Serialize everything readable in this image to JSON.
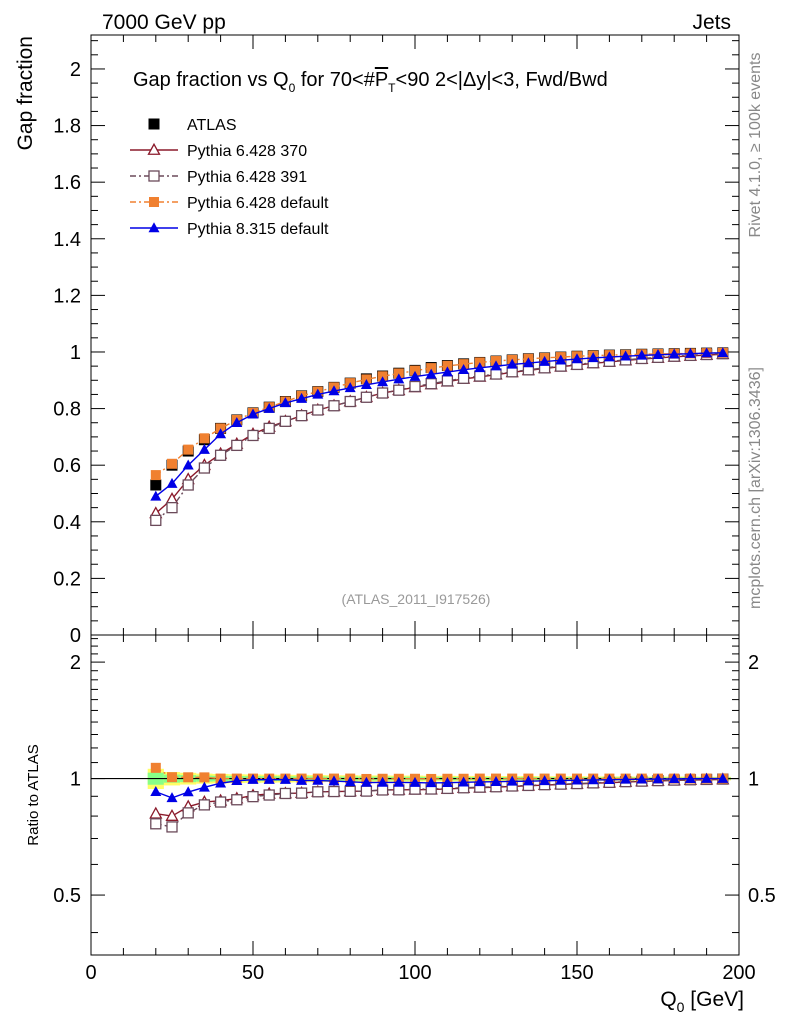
{
  "header": {
    "left": "7000 GeV pp",
    "right": "Jets"
  },
  "side_labels": {
    "rivet": "Rivet 4.1.0, ≥ 100k events",
    "mcplots": "mcplots.cern.ch [arXiv:1306.3436]"
  },
  "chart_data": {
    "type": "scatter",
    "title": {
      "prefix": "Gap fraction vs Q",
      "sub": "0",
      "middle": " for 70<#",
      "pbar": "P",
      "pbar_sub": "T",
      "suffix": "<90  2<|Δy|<3, Fwd/Bwd"
    },
    "reference_label": "(ATLAS_2011_I917526)",
    "xlabel": "Q",
    "xlabel_sub": "0",
    "xlabel_unit": " [GeV]",
    "ylabel_main": "Gap fraction",
    "ylabel_ratio": "Ratio to ATLAS",
    "xlim": [
      0,
      200
    ],
    "ylim_main": [
      0,
      2.12
    ],
    "ylim_ratio": [
      0.35,
      2.35
    ],
    "x_ticks": [
      "0",
      "50",
      "100",
      "150",
      "200"
    ],
    "y_ticks_main": [
      "0",
      "0.2",
      "0.4",
      "0.6",
      "0.8",
      "1",
      "1.2",
      "1.4",
      "1.6",
      "1.8",
      "2"
    ],
    "y_ticks_ratio": [
      "0.5",
      "1",
      "2"
    ],
    "x": [
      20,
      25,
      30,
      35,
      40,
      45,
      50,
      55,
      60,
      65,
      70,
      75,
      80,
      85,
      90,
      95,
      100,
      105,
      110,
      115,
      120,
      125,
      130,
      135,
      140,
      145,
      150,
      155,
      160,
      165,
      170,
      175,
      180,
      185,
      190,
      195
    ],
    "series": [
      {
        "name": "ATLAS",
        "color": "#000000",
        "marker": "square-filled",
        "values": [
          0.53,
          0.6,
          0.65,
          0.69,
          0.73,
          0.76,
          0.785,
          0.805,
          0.825,
          0.845,
          0.86,
          0.875,
          0.89,
          0.905,
          0.915,
          0.925,
          0.935,
          0.945,
          0.952,
          0.958,
          0.963,
          0.968,
          0.972,
          0.976,
          0.979,
          0.982,
          0.985,
          0.987,
          0.989,
          0.99,
          0.992,
          0.993,
          0.994,
          0.995,
          0.996,
          0.997
        ]
      },
      {
        "name": "Pythia 6.428 370",
        "color": "#8b1a2b",
        "marker": "triangle-open",
        "values": [
          0.43,
          0.48,
          0.55,
          0.6,
          0.64,
          0.675,
          0.71,
          0.735,
          0.755,
          0.775,
          0.795,
          0.81,
          0.825,
          0.84,
          0.855,
          0.865,
          0.875,
          0.885,
          0.895,
          0.905,
          0.912,
          0.92,
          0.928,
          0.935,
          0.942,
          0.948,
          0.954,
          0.96,
          0.965,
          0.97,
          0.975,
          0.979,
          0.983,
          0.986,
          0.989,
          0.992
        ]
      },
      {
        "name": "Pythia 6.428 391",
        "color": "#6b4a5a",
        "marker": "square-open",
        "values": [
          0.405,
          0.45,
          0.53,
          0.59,
          0.635,
          0.67,
          0.705,
          0.73,
          0.755,
          0.775,
          0.795,
          0.81,
          0.825,
          0.84,
          0.855,
          0.865,
          0.878,
          0.888,
          0.898,
          0.907,
          0.915,
          0.922,
          0.93,
          0.937,
          0.944,
          0.95,
          0.956,
          0.962,
          0.967,
          0.972,
          0.977,
          0.981,
          0.985,
          0.988,
          0.991,
          0.994
        ]
      },
      {
        "name": "Pythia 6.428 default",
        "color": "#f08030",
        "marker": "square-filled",
        "values": [
          0.565,
          0.605,
          0.655,
          0.695,
          0.73,
          0.76,
          0.785,
          0.805,
          0.825,
          0.845,
          0.86,
          0.875,
          0.89,
          0.903,
          0.914,
          0.924,
          0.934,
          0.943,
          0.951,
          0.957,
          0.963,
          0.968,
          0.972,
          0.976,
          0.979,
          0.982,
          0.985,
          0.987,
          0.989,
          0.99,
          0.992,
          0.993,
          0.994,
          0.995,
          0.996,
          0.997
        ]
      },
      {
        "name": "Pythia 8.315 default",
        "color": "#0000e6",
        "marker": "triangle-filled",
        "values": [
          0.49,
          0.535,
          0.6,
          0.655,
          0.71,
          0.75,
          0.78,
          0.8,
          0.82,
          0.835,
          0.85,
          0.862,
          0.873,
          0.884,
          0.894,
          0.904,
          0.913,
          0.921,
          0.929,
          0.937,
          0.944,
          0.95,
          0.956,
          0.961,
          0.966,
          0.971,
          0.975,
          0.979,
          0.982,
          0.985,
          0.988,
          0.99,
          0.992,
          0.994,
          0.996,
          0.997
        ]
      }
    ],
    "data_uncertainty_ratio": [
      0.06,
      0.04,
      0.035,
      0.03,
      0.028,
      0.026,
      0.025,
      0.024,
      0.023,
      0.022,
      0.021,
      0.02,
      0.02,
      0.019,
      0.019,
      0.018,
      0.018,
      0.017,
      0.017,
      0.016,
      0.016,
      0.015,
      0.015,
      0.015,
      0.014,
      0.014,
      0.014,
      0.013,
      0.013,
      0.013,
      0.012,
      0.012,
      0.012,
      0.012,
      0.011,
      0.011
    ],
    "band_colors": [
      "#ffff66",
      "#88ff88"
    ]
  }
}
